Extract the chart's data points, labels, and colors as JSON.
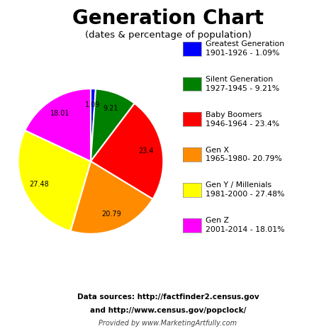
{
  "title": "Generation Chart",
  "subtitle": "(dates & percentage of population)",
  "slices": [
    1.09,
    9.21,
    23.4,
    20.79,
    27.48,
    18.01
  ],
  "colors": [
    "#0000FF",
    "#008000",
    "#FF0000",
    "#FF8C00",
    "#FFFF00",
    "#FF00FF"
  ],
  "labels": [
    "1.09",
    "9.21",
    "23.4",
    "20.79",
    "27.48",
    "18.01"
  ],
  "legend_labels": [
    "Greatest Generation\n1901-1926 - 1.09%",
    "Silent Generation\n1927-1945 - 9.21%",
    "Baby Boomers\n1946-1964 - 23.4%",
    "Gen X\n1965-1980- 20.79%",
    "Gen Y / Millenials\n1981-2000 - 27.48%",
    "Gen Z\n2001-2014 - 18.01%"
  ],
  "startangle": 90,
  "background_color": "#FFFFFF",
  "footer_line1": "Data sources: http://factfinder2.census.gov",
  "footer_line2": "and http://www.census.gov/popclock/",
  "footer_line3": "Provided by www.MarketingArtfully.com"
}
